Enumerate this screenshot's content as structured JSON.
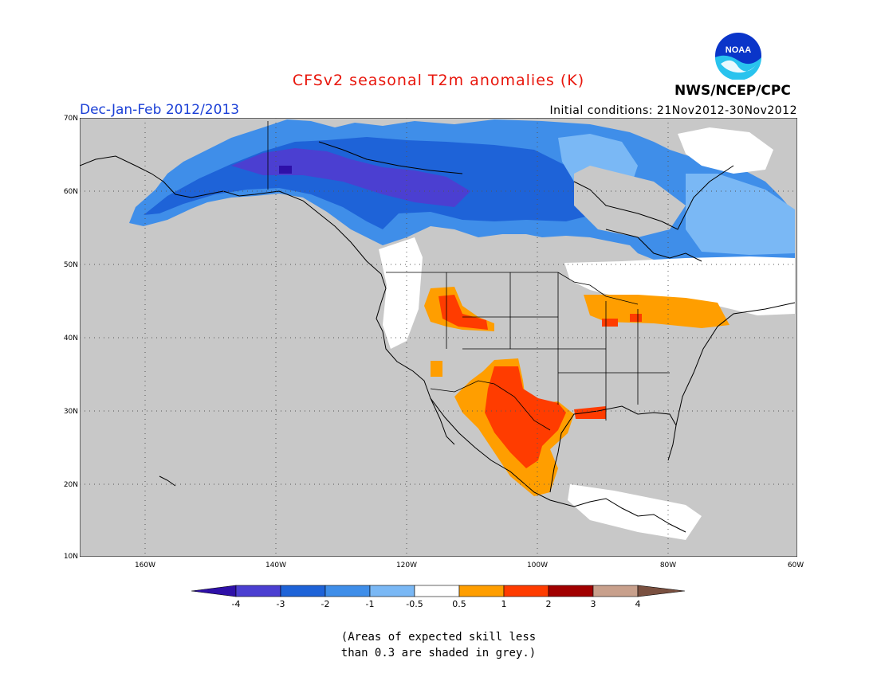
{
  "title": "CFSv2 seasonal T2m anomalies (K)",
  "period": "Dec-Jan-Feb 2012/2013",
  "initial_conditions": "Initial conditions: 21Nov2012-30Nov2012",
  "agency": "NWS/NCEP/CPC",
  "logo_text": "NOAA",
  "map": {
    "lat_labels": [
      "70N",
      "60N",
      "50N",
      "40N",
      "30N",
      "20N",
      "10N"
    ],
    "lon_labels": [
      "160W",
      "140W",
      "120W",
      "100W",
      "80W",
      "60W"
    ],
    "lat_range": [
      10,
      70
    ],
    "lon_range": [
      "170W",
      "60W"
    ],
    "grid": "dotted",
    "background_color": "#c8c8c8"
  },
  "colorbar": {
    "ticks": [
      "-4",
      "-3",
      "-2",
      "-1",
      "-0.5",
      "0.5",
      "1",
      "2",
      "3",
      "4"
    ],
    "colors": [
      "#2e10a8",
      "#4b3fd1",
      "#1e63d8",
      "#3f8ee9",
      "#7ab8f5",
      "#ffffff",
      "#ff9e00",
      "#ff3c00",
      "#a10000",
      "#c8a08c",
      "#7a5040"
    ]
  },
  "note_lines": [
    "(Areas of expected skill less",
    "than 0.3 are shaded in grey.)"
  ]
}
